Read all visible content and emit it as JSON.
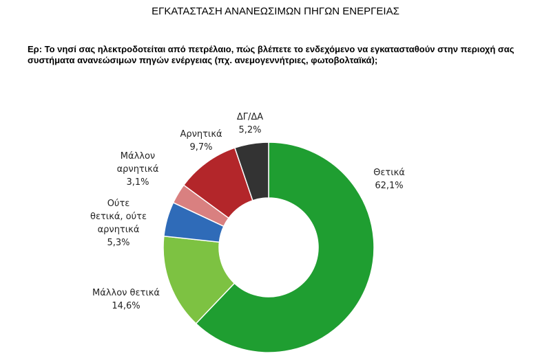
{
  "chart_data": {
    "type": "donut",
    "title": "ΕΓΚΑΤΑΣΤΑΣΗ ΑΝΑΝΕΩΣΙΜΩΝ ΠΗΓΩΝ ΕΝΕΡΓΕΙΑΣ",
    "subtitle": "Ερ: Το νησί σας ηλεκτροδοτείται από πετρέλαιο, πώς βλέπετε το ενδεχόμενο να εγκατασταθούν στην περιοχή σας συστήματα ανανεώσιμων πηγών ενέργειας (πχ. ανεμογεννήτριες, φωτοβολταϊκά);",
    "categories": [
      "Θετικά",
      "Μάλλον θετικά",
      "Ούτε\nθετικά, ούτε\nαρνητικά",
      "Μάλλον\nαρνητικά",
      "Αρνητικά",
      "ΔΓ/ΔΑ"
    ],
    "values": [
      62.1,
      14.6,
      5.3,
      3.1,
      9.7,
      5.2
    ],
    "value_labels": [
      "62,1%",
      "14,6%",
      "5,3%",
      "3,1%",
      "9,7%",
      "5,2%"
    ],
    "colors": [
      "#1f9e31",
      "#7dc242",
      "#2f6bb8",
      "#d98080",
      "#b3262a",
      "#333333"
    ]
  }
}
